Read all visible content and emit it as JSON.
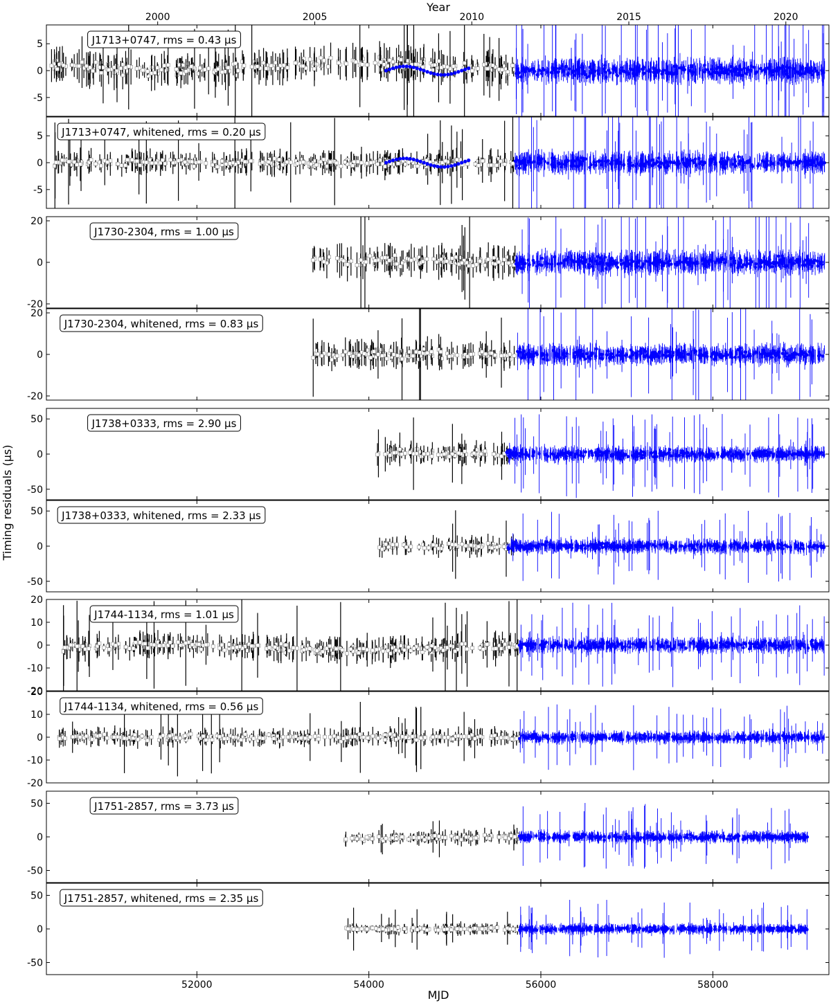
{
  "figure": {
    "top_axis_label": "Year",
    "bottom_axis_label": "MJD",
    "y_axis_label": "Timing residuals (µs)",
    "year_ticks": [
      {
        "label": "2000",
        "mjd": 51544
      },
      {
        "label": "2005",
        "mjd": 53371
      },
      {
        "label": "2010",
        "mjd": 55197
      },
      {
        "label": "2015",
        "mjd": 57023
      },
      {
        "label": "2020",
        "mjd": 58849
      }
    ],
    "mjd_ticks": [
      52000,
      54000,
      56000,
      58000
    ],
    "colors": {
      "legacy": "#000000",
      "legacy_marker": "#ffffff",
      "new": "#0000ff"
    }
  },
  "chart_data": [
    {
      "type": "scatter",
      "pulsar": "J1713+0747",
      "label": "J1713+0747, rms = 0.43 µs",
      "xlim": [
        50250,
        59350
      ],
      "ylim": [
        -8.5,
        8.5
      ],
      "yticks": [
        -5,
        0,
        5
      ],
      "legacy_range": [
        50300,
        55700
      ],
      "new_range": [
        55700,
        59300
      ],
      "legacy_amp": 1.2,
      "new_amp": 1.0,
      "blue_wave": [
        54200,
        55200
      ],
      "legacy_offset": 1.5
    },
    {
      "type": "scatter",
      "pulsar": "J1713+0747",
      "label": "J1713+0747, whitened, rms = 0.20 µs",
      "xlim": [
        50250,
        59350
      ],
      "ylim": [
        -8.5,
        8.5
      ],
      "yticks": [
        -5,
        0,
        5
      ],
      "legacy_range": [
        50300,
        55700
      ],
      "new_range": [
        55700,
        59300
      ],
      "legacy_amp": 0.8,
      "new_amp": 0.9,
      "blue_wave": [
        54200,
        55200
      ],
      "legacy_offset": 0
    },
    {
      "type": "scatter",
      "pulsar": "J1730-2304",
      "label": "J1730-2304, rms = 1.00 µs",
      "xlim": [
        50250,
        59350
      ],
      "ylim": [
        -22,
        22
      ],
      "yticks": [
        -20,
        0,
        20
      ],
      "legacy_range": [
        53350,
        55700
      ],
      "new_range": [
        55700,
        59300
      ],
      "legacy_amp": 3,
      "new_amp": 2.5,
      "legacy_offset": 1
    },
    {
      "type": "scatter",
      "pulsar": "J1730-2304",
      "label": "J1730-2304, whitened, rms = 0.83 µs",
      "xlim": [
        50250,
        59350
      ],
      "ylim": [
        -22,
        22
      ],
      "yticks": [
        -20,
        0,
        20
      ],
      "legacy_range": [
        53350,
        55700
      ],
      "new_range": [
        55700,
        59300
      ],
      "legacy_amp": 2.5,
      "new_amp": 2.2,
      "legacy_offset": 0
    },
    {
      "type": "scatter",
      "pulsar": "J1738+0333",
      "label": "J1738+0333, rms = 2.90 µs",
      "xlim": [
        50250,
        59350
      ],
      "ylim": [
        -65,
        65
      ],
      "yticks": [
        -50,
        0,
        50
      ],
      "legacy_range": [
        54100,
        55700
      ],
      "new_range": [
        55600,
        59300
      ],
      "legacy_amp": 6,
      "new_amp": 5,
      "legacy_offset": 2
    },
    {
      "type": "scatter",
      "pulsar": "J1738+0333",
      "label": "J1738+0333, whitened, rms = 2.33 µs",
      "xlim": [
        50250,
        59350
      ],
      "ylim": [
        -65,
        65
      ],
      "yticks": [
        -50,
        0,
        50
      ],
      "legacy_range": [
        54100,
        55700
      ],
      "new_range": [
        55600,
        59300
      ],
      "legacy_amp": 5,
      "new_amp": 4.5,
      "legacy_offset": 0
    },
    {
      "type": "scatter",
      "pulsar": "J1744-1134",
      "label": "J1744-1134, rms = 1.01 µs",
      "xlim": [
        50250,
        59350
      ],
      "ylim": [
        -20,
        20
      ],
      "yticks": [
        -20,
        -10,
        0,
        10,
        20
      ],
      "legacy_range": [
        50400,
        55750
      ],
      "new_range": [
        55750,
        59300
      ],
      "legacy_amp": 2,
      "new_amp": 1.5,
      "legacy_offset": -2
    },
    {
      "type": "scatter",
      "pulsar": "J1744-1134",
      "label": "J1744-1134, whitened, rms = 0.56 µs",
      "xlim": [
        50250,
        59350
      ],
      "ylim": [
        -20,
        20
      ],
      "yticks": [
        -20,
        -10,
        0,
        10,
        20
      ],
      "legacy_range": [
        50400,
        55750
      ],
      "new_range": [
        55750,
        59300
      ],
      "legacy_amp": 1.5,
      "new_amp": 1.2,
      "legacy_offset": 0
    },
    {
      "type": "scatter",
      "pulsar": "J1751-2857",
      "label": "J1751-2857, rms = 3.73 µs",
      "xlim": [
        50250,
        59350
      ],
      "ylim": [
        -68,
        68
      ],
      "yticks": [
        -50,
        0,
        50
      ],
      "legacy_range": [
        53700,
        55750
      ],
      "new_range": [
        55750,
        59100
      ],
      "legacy_amp": 4,
      "new_amp": 4,
      "legacy_offset": -2
    },
    {
      "type": "scatter",
      "pulsar": "J1751-2857",
      "label": "J1751-2857, whitened, rms = 2.35 µs",
      "xlim": [
        50250,
        59350
      ],
      "ylim": [
        -68,
        68
      ],
      "yticks": [
        -50,
        0,
        50
      ],
      "legacy_range": [
        53700,
        55750
      ],
      "new_range": [
        55750,
        59100
      ],
      "legacy_amp": 3,
      "new_amp": 3.5,
      "legacy_offset": 0
    }
  ]
}
